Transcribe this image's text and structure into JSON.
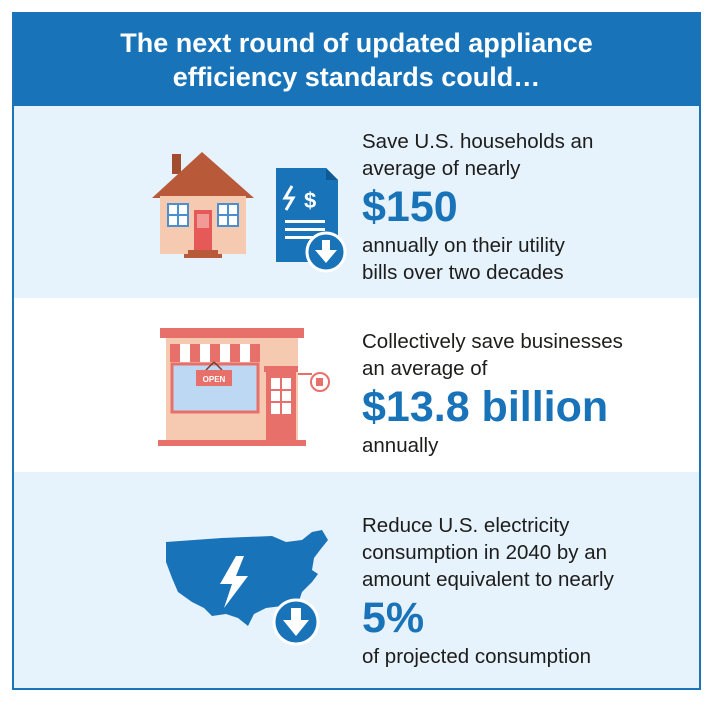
{
  "header": {
    "line1": "The next round of updated appliance",
    "line2": "efficiency standards could…"
  },
  "items": [
    {
      "lines_before": [
        "Save U.S. households an",
        "average of nearly"
      ],
      "highlight": "$150",
      "lines_after": [
        "annually on their utility",
        "bills over two decades"
      ],
      "icon": "house-bill-icon"
    },
    {
      "lines_before": [
        "Collectively save businesses",
        "an average of"
      ],
      "highlight": "$13.8 billion",
      "lines_after": [
        "annually"
      ],
      "icon": "storefront-icon",
      "sign_text": "OPEN"
    },
    {
      "lines_before": [
        "Reduce U.S. electricity",
        "consumption in 2040 by an",
        "amount equivalent to nearly"
      ],
      "highlight": "5%",
      "lines_after": [
        "of projected consumption"
      ],
      "icon": "us-map-lightning-icon"
    }
  ],
  "colors": {
    "brand_blue": "#1973b8",
    "panel_light": "#e6f2fc",
    "house_roof": "#b85a3a",
    "store_red": "#e8706a"
  }
}
